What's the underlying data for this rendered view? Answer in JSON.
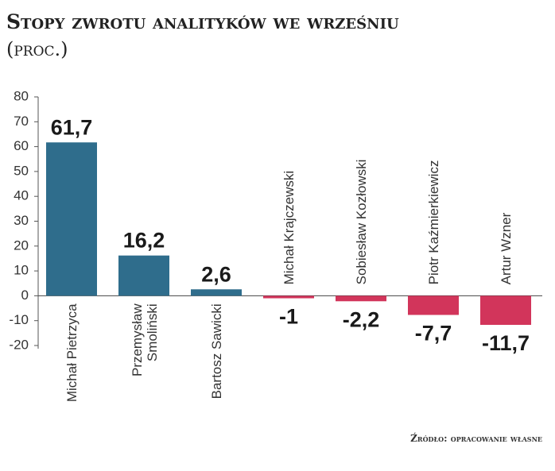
{
  "chart_data": {
    "type": "bar",
    "title": "Stopy zwrotu analityków we wrześniu",
    "subtitle": "(proc.)",
    "source": "Źródło: opracowanie własne",
    "categories": [
      "Michał Pietrzyca",
      "Przemysław\nSmoliński",
      "Bartosz Sawicki",
      "Michał Krajczewski",
      "Sobiesław Kozłowski",
      "Piotr Kaźmierkiewicz",
      "Artur Wzner"
    ],
    "values": [
      61.7,
      16.2,
      2.6,
      -1,
      -2.2,
      -7.7,
      -11.7
    ],
    "value_labels": [
      "61,7",
      "16,2",
      "2,6",
      "-1",
      "-2,2",
      "-7,7",
      "-11,7"
    ],
    "colors": [
      "#2f6d8c",
      "#2f6d8c",
      "#2f6d8c",
      "#d2355b",
      "#d2355b",
      "#d2355b",
      "#d2355b"
    ],
    "ylim": [
      -20,
      80
    ],
    "yticks": [
      -20,
      -10,
      0,
      10,
      20,
      30,
      40,
      50,
      60,
      70,
      80
    ]
  }
}
